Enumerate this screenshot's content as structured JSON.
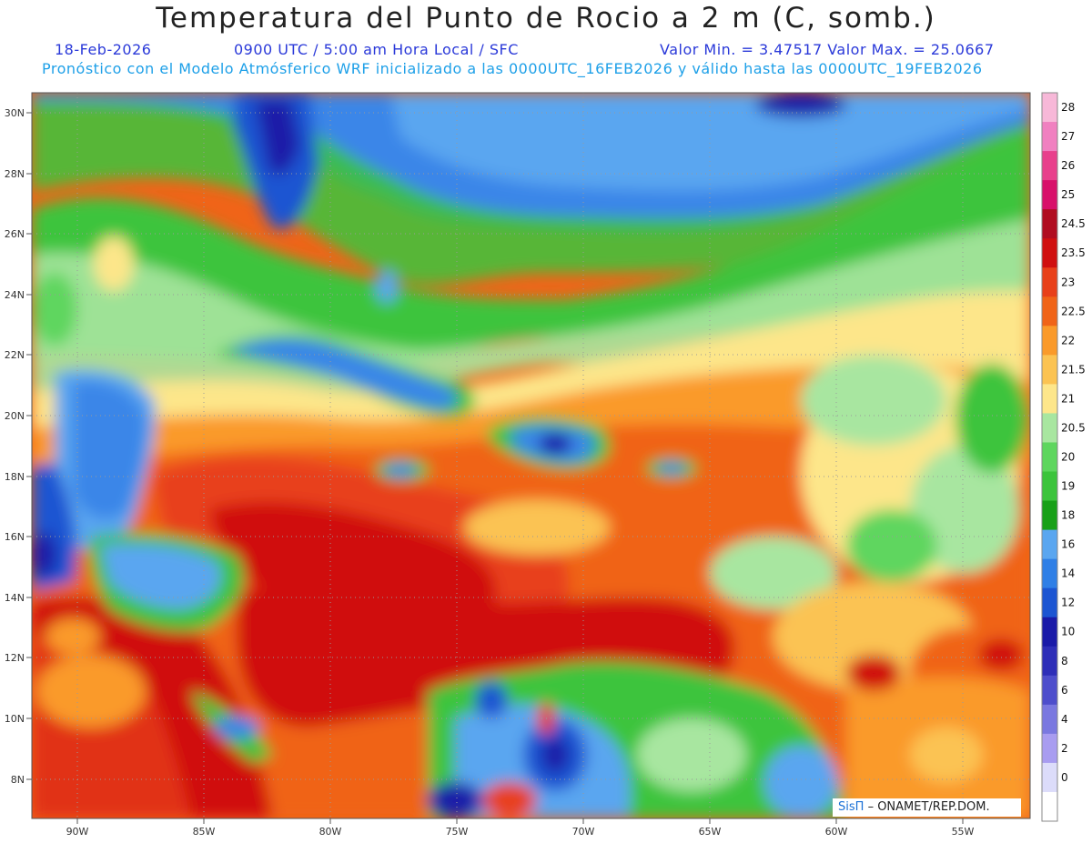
{
  "header": {
    "title": "Temperatura del Punto de Rocio a 2 m (C, somb.)",
    "date": "18-Feb-2026",
    "time": "0900 UTC / 5:00 am Hora Local / SFC",
    "range": "Valor Min. = 3.47517  Valor Max. = 25.0667",
    "model_line": "Pronóstico con el Modelo Atmósferico WRF inicializado a las 0000UTC_16FEB2026 y válido hasta las  0000UTC_19FEB2026"
  },
  "axes": {
    "lat_labels": [
      "30N",
      "28N",
      "26N",
      "24N",
      "22N",
      "20N",
      "18N",
      "16N",
      "14N",
      "12N",
      "10N",
      "8N"
    ],
    "lon_labels": [
      "90W",
      "85W",
      "80W",
      "75W",
      "70W",
      "65W",
      "60W",
      "55W"
    ]
  },
  "colorbar": {
    "labels": [
      "28",
      "27",
      "26",
      "25",
      "24.5",
      "23.5",
      "23",
      "22.5",
      "22",
      "21.5",
      "21",
      "20.5",
      "20",
      "19",
      "18",
      "16",
      "14",
      "12",
      "10",
      "8",
      "6",
      "4",
      "2",
      "0"
    ],
    "colors": [
      "#f7b8d8",
      "#f080c0",
      "#e8408c",
      "#d8106a",
      "#b00c20",
      "#d00f10",
      "#e8401a",
      "#f06418",
      "#fa9a2a",
      "#fbc352",
      "#fde68a",
      "#a8e6a0",
      "#5ed65e",
      "#3cc43c",
      "#18a018",
      "#5aa6f0",
      "#2f7fe6",
      "#1c55d2",
      "#1a1aa8",
      "#2e2eb8",
      "#4e4ecc",
      "#7a78e0",
      "#a89cf0",
      "#dcdcfa",
      "#ffffff"
    ]
  },
  "credit": {
    "brand": "SisΠ",
    "org": "– ONAMET/REP.DOM."
  }
}
